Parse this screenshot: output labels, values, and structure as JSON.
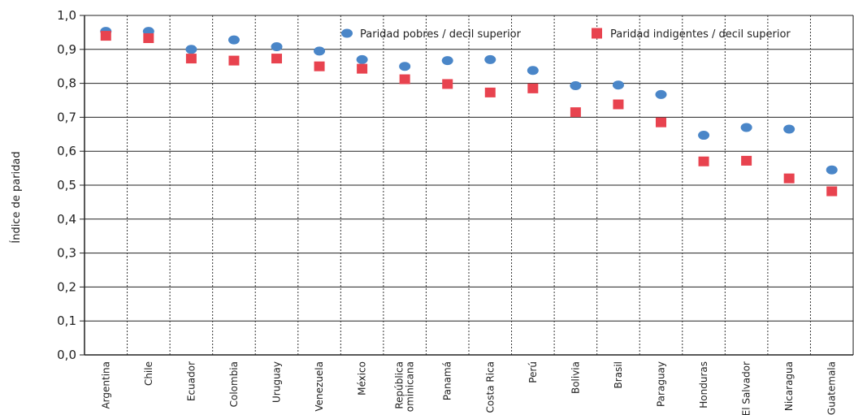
{
  "chart_data": {
    "type": "scatter",
    "title": "",
    "xlabel": "",
    "ylabel": "Índice de paridad",
    "ylim": [
      0,
      1.0
    ],
    "yticks": [
      "0,0",
      "0,1",
      "0,2",
      "0,3",
      "0,4",
      "0,5",
      "0,6",
      "0,7",
      "0,8",
      "0,9",
      "1,0"
    ],
    "ytick_values": [
      0,
      0.1,
      0.2,
      0.3,
      0.4,
      0.5,
      0.6,
      0.7,
      0.8,
      0.9,
      1.0
    ],
    "grid": "horizontal",
    "legend_position": "top-right",
    "categories": [
      [
        "Argentina"
      ],
      [
        "Chile"
      ],
      [
        "Ecuador"
      ],
      [
        "Colombia"
      ],
      [
        "Uruguay"
      ],
      [
        "Venezuela"
      ],
      [
        "México"
      ],
      [
        "República",
        "ominicana"
      ],
      [
        "Panamá"
      ],
      [
        "Costa Rica"
      ],
      [
        "Perú"
      ],
      [
        "Bolivia"
      ],
      [
        "Brasil"
      ],
      [
        "Paraguay"
      ],
      [
        "Honduras"
      ],
      [
        "El Salvador"
      ],
      [
        "Nicaragua"
      ],
      [
        "Guatemala"
      ]
    ],
    "series": [
      {
        "name": "Paridad pobres / decil superior",
        "marker": "circle",
        "color": "#4a86c8",
        "values": [
          0.953,
          0.953,
          0.9,
          0.928,
          0.908,
          0.895,
          0.87,
          0.85,
          0.867,
          0.87,
          0.838,
          0.793,
          0.795,
          0.767,
          0.647,
          0.67,
          0.665,
          0.545
        ]
      },
      {
        "name": "Paridad indigentes / decil superior",
        "marker": "square",
        "color": "#e8434f",
        "values": [
          0.94,
          0.933,
          0.873,
          0.867,
          0.873,
          0.85,
          0.843,
          0.812,
          0.798,
          0.773,
          0.785,
          0.715,
          0.738,
          0.685,
          0.57,
          0.572,
          0.52,
          0.482
        ]
      }
    ]
  }
}
